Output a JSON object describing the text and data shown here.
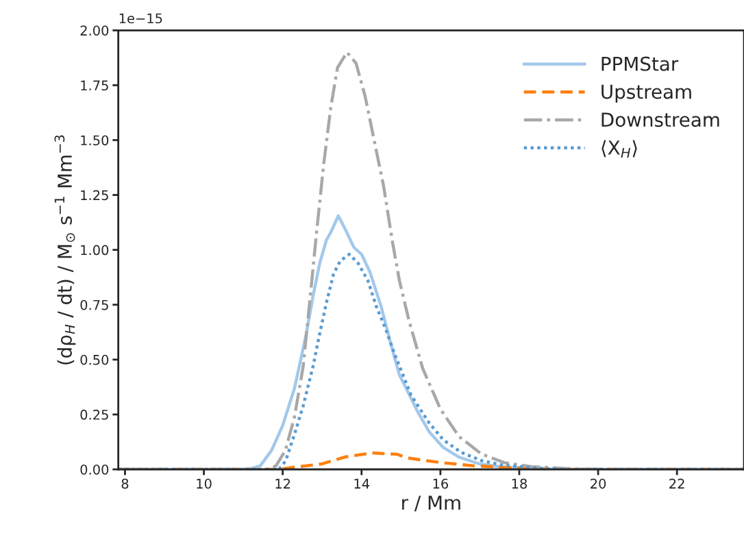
{
  "chart_data": {
    "type": "line",
    "xlabel": "r / Mm",
    "ylabel": "(dρ$_{H}$ / dt) / M$_{⊙}$ s$^{−1}$ Mm$^{−3}$",
    "annotations": [
      "1e−15"
    ],
    "xlim": [
      7.83,
      23.7
    ],
    "xticks": [
      8,
      10,
      12,
      14,
      16,
      18,
      20,
      22
    ],
    "ylim": [
      0,
      2.0
    ],
    "yticks": [
      {
        "value": 0,
        "label": "0.00"
      },
      {
        "value": 0.25,
        "label": "0.25"
      },
      {
        "value": 0.5,
        "label": "0.50"
      },
      {
        "value": 0.75,
        "label": "0.75"
      },
      {
        "value": 1.0,
        "label": "1.00"
      },
      {
        "value": 1.25,
        "label": "1.25"
      },
      {
        "value": 1.5,
        "label": "1.50"
      },
      {
        "value": 1.75,
        "label": "1.75"
      },
      {
        "value": 2.0,
        "label": "2.00"
      }
    ],
    "grid": false,
    "legend": "top right",
    "series": [
      {
        "name": "PPMStar",
        "color": "#a3c8ec",
        "line_style": "solid",
        "x": [
          7.83,
          11.0,
          11.18,
          11.43,
          11.72,
          12.0,
          12.3,
          12.59,
          12.77,
          12.94,
          13.11,
          13.22,
          13.41,
          13.57,
          13.81,
          14.0,
          14.21,
          14.5,
          14.73,
          14.96,
          15.13,
          15.43,
          15.72,
          16.07,
          16.47,
          16.99,
          17.57,
          18.33,
          19.0,
          23.7
        ],
        "values": [
          0,
          0,
          0.003,
          0.016,
          0.087,
          0.2,
          0.37,
          0.61,
          0.79,
          0.94,
          1.045,
          1.08,
          1.155,
          1.1,
          1.01,
          0.98,
          0.9,
          0.74,
          0.58,
          0.43,
          0.37,
          0.26,
          0.17,
          0.1,
          0.056,
          0.025,
          0.01,
          0.005,
          0,
          0
        ]
      },
      {
        "name": "Upstream",
        "color": "#ff7f0e",
        "line_style": "dashed",
        "x": [
          7.83,
          11.9,
          12.3,
          13.0,
          13.57,
          14.26,
          14.56,
          14.9,
          15.13,
          16.0,
          16.87,
          17.74,
          19.0,
          23.7
        ],
        "values": [
          0,
          0,
          0.01,
          0.025,
          0.056,
          0.075,
          0.072,
          0.069,
          0.053,
          0.031,
          0.016,
          0.009,
          0,
          0
        ]
      },
      {
        "name": "Downstream",
        "color": "#a8a8a8",
        "line_style": "dashdot",
        "x": [
          7.83,
          11.6,
          11.83,
          12.07,
          12.3,
          12.52,
          12.7,
          12.87,
          13.04,
          13.22,
          13.39,
          13.63,
          13.86,
          14.09,
          14.33,
          14.56,
          14.78,
          14.96,
          15.2,
          15.55,
          16.0,
          16.47,
          17.04,
          17.63,
          18.33,
          19.2,
          20.0,
          23.7
        ],
        "values": [
          0,
          0,
          0.016,
          0.087,
          0.24,
          0.47,
          0.79,
          1.1,
          1.39,
          1.65,
          1.83,
          1.9,
          1.85,
          1.7,
          1.49,
          1.29,
          1.04,
          0.86,
          0.68,
          0.46,
          0.275,
          0.15,
          0.07,
          0.03,
          0.012,
          0.004,
          0,
          0
        ]
      },
      {
        "name": "⟨X$_{H}$⟩",
        "color": "#5a9bd0",
        "line_style": "dotted",
        "x": [
          7.83,
          11.9,
          12.07,
          12.3,
          12.52,
          12.77,
          12.94,
          13.11,
          13.29,
          13.46,
          13.69,
          13.91,
          14.16,
          14.38,
          14.61,
          14.85,
          15.25,
          15.72,
          16.07,
          16.52,
          17.04,
          17.57,
          18.16,
          19.0,
          23.7
        ],
        "values": [
          0,
          0,
          0.037,
          0.16,
          0.29,
          0.47,
          0.62,
          0.76,
          0.89,
          0.95,
          0.98,
          0.94,
          0.86,
          0.74,
          0.64,
          0.52,
          0.34,
          0.21,
          0.135,
          0.078,
          0.04,
          0.02,
          0.01,
          0,
          0
        ]
      }
    ]
  }
}
